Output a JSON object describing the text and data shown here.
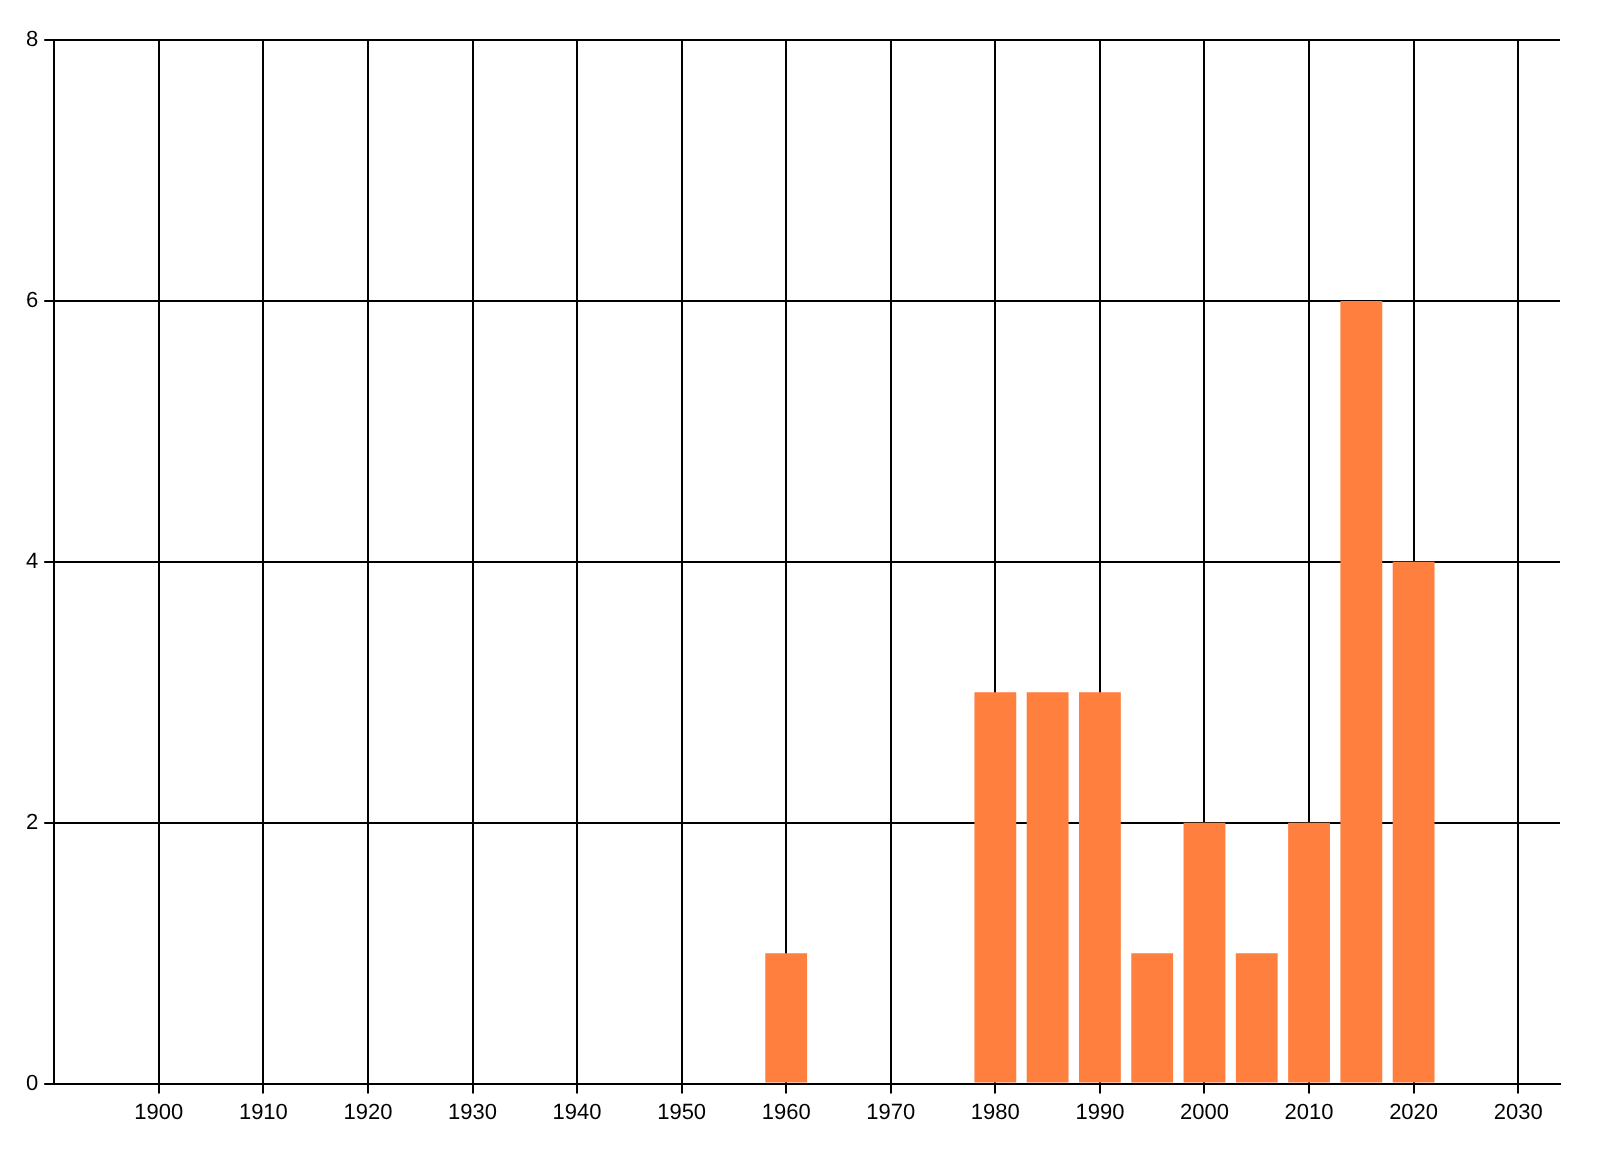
{
  "chart_data": {
    "type": "bar",
    "x": [
      1960,
      1980,
      1985,
      1990,
      1995,
      2000,
      2005,
      2010,
      2015,
      2020
    ],
    "values": [
      1,
      3,
      3,
      3,
      1,
      2,
      1,
      2,
      6,
      4
    ],
    "color": "#ff7f3f",
    "xlim": [
      1890,
      2034
    ],
    "xticks": [
      1900,
      1910,
      1920,
      1930,
      1940,
      1950,
      1960,
      1970,
      1980,
      1990,
      2000,
      2010,
      2020,
      2030
    ],
    "ylim": [
      0,
      8
    ],
    "yticks": [
      0,
      2,
      4,
      6,
      8
    ],
    "grid": true,
    "legend": false
  }
}
